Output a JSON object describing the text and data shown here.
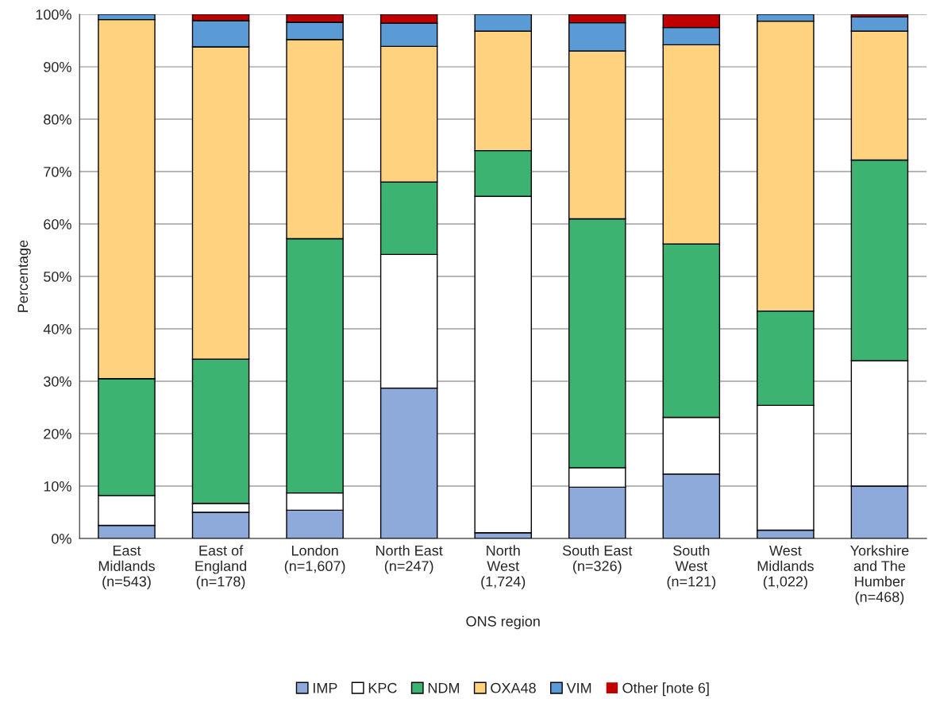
{
  "chart_data": {
    "type": "bar",
    "stacked": true,
    "xlabel": "ONS region",
    "ylabel": "Percentage",
    "categories": [
      "East\nMidlands\n(n=543)",
      "East of\nEngland\n(n=178)",
      "London\n(n=1,607)",
      "North East\n(n=247)",
      "North\nWest\n(1,724)",
      "South East\n(n=326)",
      "South\nWest\n(n=121)",
      "West\nMidlands\n(1,022)",
      "Yorkshire\nand The\nHumber\n(n=468)"
    ],
    "series": [
      {
        "name": "IMP",
        "color": "#8eaadb",
        "values": [
          2.5,
          5,
          5.4,
          28.7,
          1.1,
          9.8,
          12.3,
          1.6,
          10
        ]
      },
      {
        "name": "KPC",
        "color": "#ffffff",
        "values": [
          5.7,
          1.7,
          3.3,
          25.5,
          64.2,
          3.7,
          10.8,
          23.8,
          23.9
        ]
      },
      {
        "name": "NDM",
        "color": "#3cb371",
        "values": [
          22.3,
          27.5,
          48.5,
          13.8,
          8.7,
          47.5,
          33.1,
          18,
          38.3
        ]
      },
      {
        "name": "OXA48",
        "color": "#ffd27f",
        "values": [
          68.5,
          59.6,
          38,
          25.9,
          22.8,
          32,
          38,
          55.3,
          24.6
        ]
      },
      {
        "name": "VIM",
        "color": "#5b9bd5",
        "values": [
          1,
          5,
          3.3,
          4.4,
          3.2,
          5.4,
          3.3,
          1.3,
          2.7
        ]
      },
      {
        "name": "Other [note 6]",
        "color": "#c00000",
        "values": [
          0,
          1.2,
          1.5,
          1.7,
          0,
          1.6,
          2.5,
          0,
          0.5
        ]
      }
    ],
    "ylim": [
      0,
      100
    ],
    "yticks": [
      {
        "value": 0,
        "label": "0%"
      },
      {
        "value": 10,
        "label": "10%"
      },
      {
        "value": 20,
        "label": "20%"
      },
      {
        "value": 30,
        "label": "30%"
      },
      {
        "value": 40,
        "label": "40%"
      },
      {
        "value": 50,
        "label": "50%"
      },
      {
        "value": 60,
        "label": "60%"
      },
      {
        "value": 70,
        "label": "70%"
      },
      {
        "value": 80,
        "label": "80%"
      },
      {
        "value": 90,
        "label": "90%"
      },
      {
        "value": 100,
        "label": "100%"
      }
    ],
    "grid": "y",
    "legend": "bottom"
  }
}
